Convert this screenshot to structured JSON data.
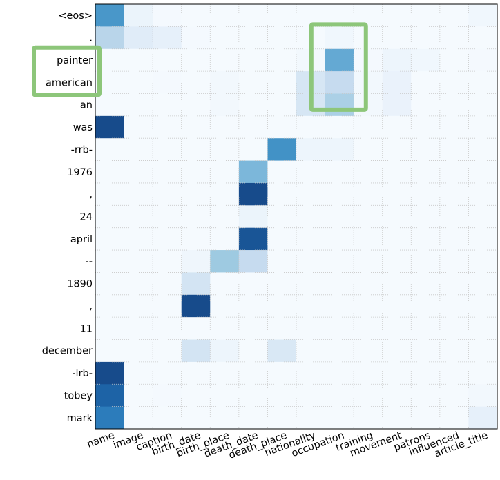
{
  "chart_data": {
    "type": "heatmap",
    "title": "",
    "colormap": {
      "low": "#f7fbff",
      "high": "#08306b"
    },
    "rows": [
      "<eos>",
      ".",
      "painter",
      "american",
      "an",
      "was",
      "-rrb-",
      "1976",
      ",",
      "24",
      "april",
      "--",
      "1890",
      ",",
      "11",
      "december",
      "-lrb-",
      "tobey",
      "mark"
    ],
    "columns": [
      "name",
      "image",
      "caption",
      "birth_date",
      "birth_place",
      "death_date",
      "death_place",
      "nationality",
      "occupation",
      "training",
      "movement",
      "patrons",
      "influenced",
      "article_title"
    ],
    "values": [
      [
        0.7,
        0.07,
        0.02,
        0.01,
        0.01,
        0.01,
        0.01,
        0.01,
        0.01,
        0.01,
        0.01,
        0.01,
        0.01,
        0.04
      ],
      [
        0.35,
        0.14,
        0.1,
        0.02,
        0.01,
        0.01,
        0.01,
        0.01,
        0.04,
        0.01,
        0.01,
        0.01,
        0.01,
        0.01
      ],
      [
        0.01,
        0.01,
        0.01,
        0.01,
        0.01,
        0.01,
        0.01,
        0.03,
        0.62,
        0.02,
        0.06,
        0.04,
        0.01,
        0.02
      ],
      [
        0.01,
        0.01,
        0.02,
        0.01,
        0.03,
        0.01,
        0.01,
        0.2,
        0.3,
        0.03,
        0.08,
        0.01,
        0.01,
        0.01
      ],
      [
        0.01,
        0.01,
        0.01,
        0.01,
        0.03,
        0.01,
        0.01,
        0.2,
        0.4,
        0.03,
        0.08,
        0.01,
        0.01,
        0.01
      ],
      [
        0.95,
        0.01,
        0.01,
        0.01,
        0.01,
        0.01,
        0.01,
        0.01,
        0.01,
        0.01,
        0.01,
        0.01,
        0.01,
        0.01
      ],
      [
        0.01,
        0.01,
        0.01,
        0.01,
        0.01,
        0.01,
        0.72,
        0.06,
        0.06,
        0.01,
        0.01,
        0.01,
        0.01,
        0.01
      ],
      [
        0.01,
        0.01,
        0.01,
        0.01,
        0.01,
        0.55,
        0.01,
        0.01,
        0.01,
        0.01,
        0.01,
        0.01,
        0.01,
        0.01
      ],
      [
        0.01,
        0.01,
        0.01,
        0.01,
        0.01,
        0.95,
        0.01,
        0.01,
        0.01,
        0.01,
        0.01,
        0.01,
        0.01,
        0.01
      ],
      [
        0.01,
        0.01,
        0.01,
        0.01,
        0.01,
        0.07,
        0.01,
        0.01,
        0.01,
        0.01,
        0.01,
        0.01,
        0.01,
        0.01
      ],
      [
        0.01,
        0.01,
        0.01,
        0.01,
        0.01,
        0.92,
        0.01,
        0.01,
        0.01,
        0.01,
        0.01,
        0.01,
        0.01,
        0.01
      ],
      [
        0.01,
        0.01,
        0.01,
        0.05,
        0.45,
        0.3,
        0.01,
        0.01,
        0.01,
        0.01,
        0.01,
        0.01,
        0.01,
        0.01
      ],
      [
        0.01,
        0.01,
        0.01,
        0.22,
        0.01,
        0.01,
        0.01,
        0.01,
        0.01,
        0.01,
        0.01,
        0.01,
        0.01,
        0.01
      ],
      [
        0.01,
        0.01,
        0.01,
        0.95,
        0.01,
        0.01,
        0.01,
        0.01,
        0.01,
        0.01,
        0.01,
        0.01,
        0.01,
        0.01
      ],
      [
        0.01,
        0.01,
        0.01,
        0.01,
        0.01,
        0.01,
        0.01,
        0.01,
        0.01,
        0.01,
        0.01,
        0.01,
        0.01,
        0.01
      ],
      [
        0.01,
        0.01,
        0.01,
        0.22,
        0.06,
        0.01,
        0.18,
        0.01,
        0.01,
        0.01,
        0.01,
        0.01,
        0.01,
        0.01
      ],
      [
        0.95,
        0.01,
        0.01,
        0.01,
        0.01,
        0.01,
        0.01,
        0.01,
        0.01,
        0.01,
        0.01,
        0.01,
        0.01,
        0.01
      ],
      [
        0.88,
        0.01,
        0.02,
        0.01,
        0.01,
        0.01,
        0.01,
        0.01,
        0.01,
        0.01,
        0.01,
        0.01,
        0.01,
        0.03
      ],
      [
        0.8,
        0.01,
        0.01,
        0.01,
        0.01,
        0.01,
        0.01,
        0.01,
        0.01,
        0.01,
        0.01,
        0.01,
        0.01,
        0.1
      ]
    ],
    "highlight_boxes": [
      {
        "rows": [
          "painter",
          "american"
        ],
        "columns": [],
        "note": "row labels"
      },
      {
        "rows": [
          ".",
          "american"
        ],
        "columns": [
          "occupation"
        ],
        "note": "cells"
      }
    ],
    "highlight_color": "#8dc67a",
    "grid": true
  }
}
